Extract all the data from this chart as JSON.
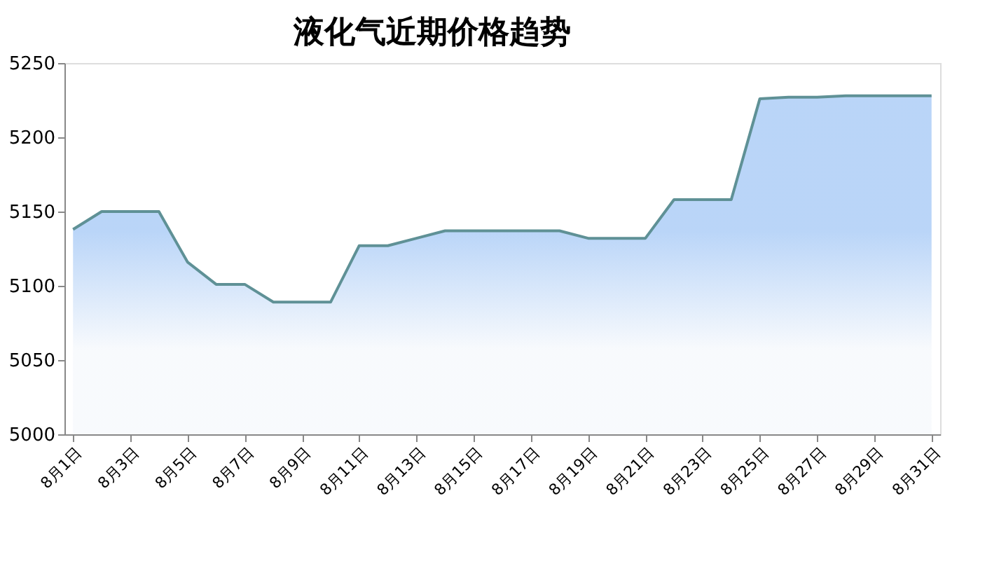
{
  "chart_data": {
    "type": "area",
    "title": "液化气近期价格趋势",
    "categories": [
      "8月1日",
      null,
      "8月3日",
      null,
      "8月5日",
      null,
      "8月7日",
      null,
      "8月9日",
      null,
      "8月11日",
      null,
      "8月13日",
      null,
      "8月15日",
      null,
      "8月17日",
      null,
      "8月19日",
      null,
      "8月21日",
      null,
      "8月23日",
      null,
      "8月25日",
      null,
      "8月27日",
      null,
      "8月29日",
      null,
      "8月31日"
    ],
    "series": [
      {
        "color": "#9cc3f5",
        "values": [
          5138,
          5150,
          5150,
          5150,
          5116,
          5101,
          5101,
          5089,
          5089,
          5089,
          5127,
          5127,
          5132,
          5137,
          5137,
          5137,
          5137,
          5137,
          5132,
          5132,
          5132,
          5158,
          5158,
          5158,
          5226,
          5227,
          5227,
          5228,
          5228,
          5228,
          5228
        ]
      }
    ],
    "ylim": [
      5000,
      5250
    ],
    "yticks": [
      5000,
      5050,
      5100,
      5150,
      5200,
      5250
    ],
    "grid": false
  }
}
